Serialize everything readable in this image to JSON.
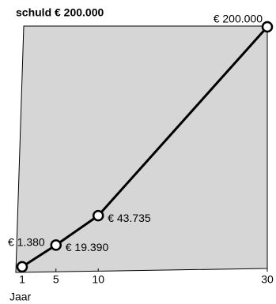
{
  "chart_data": {
    "type": "line",
    "title": "schuld € 200.000",
    "x_label": "Jaar",
    "x": [
      1,
      5,
      10,
      30
    ],
    "values": [
      1380,
      19390,
      43735,
      200000
    ],
    "value_labels": [
      "€ 1.380",
      "€ 19.390",
      "€ 43.735",
      "€ 200.000"
    ],
    "color": "#000000",
    "area_color": "#d6d6d6",
    "xlim": [
      1,
      30
    ],
    "xticks": [
      1,
      5,
      10,
      30
    ],
    "ylim": [
      0,
      200000
    ]
  }
}
